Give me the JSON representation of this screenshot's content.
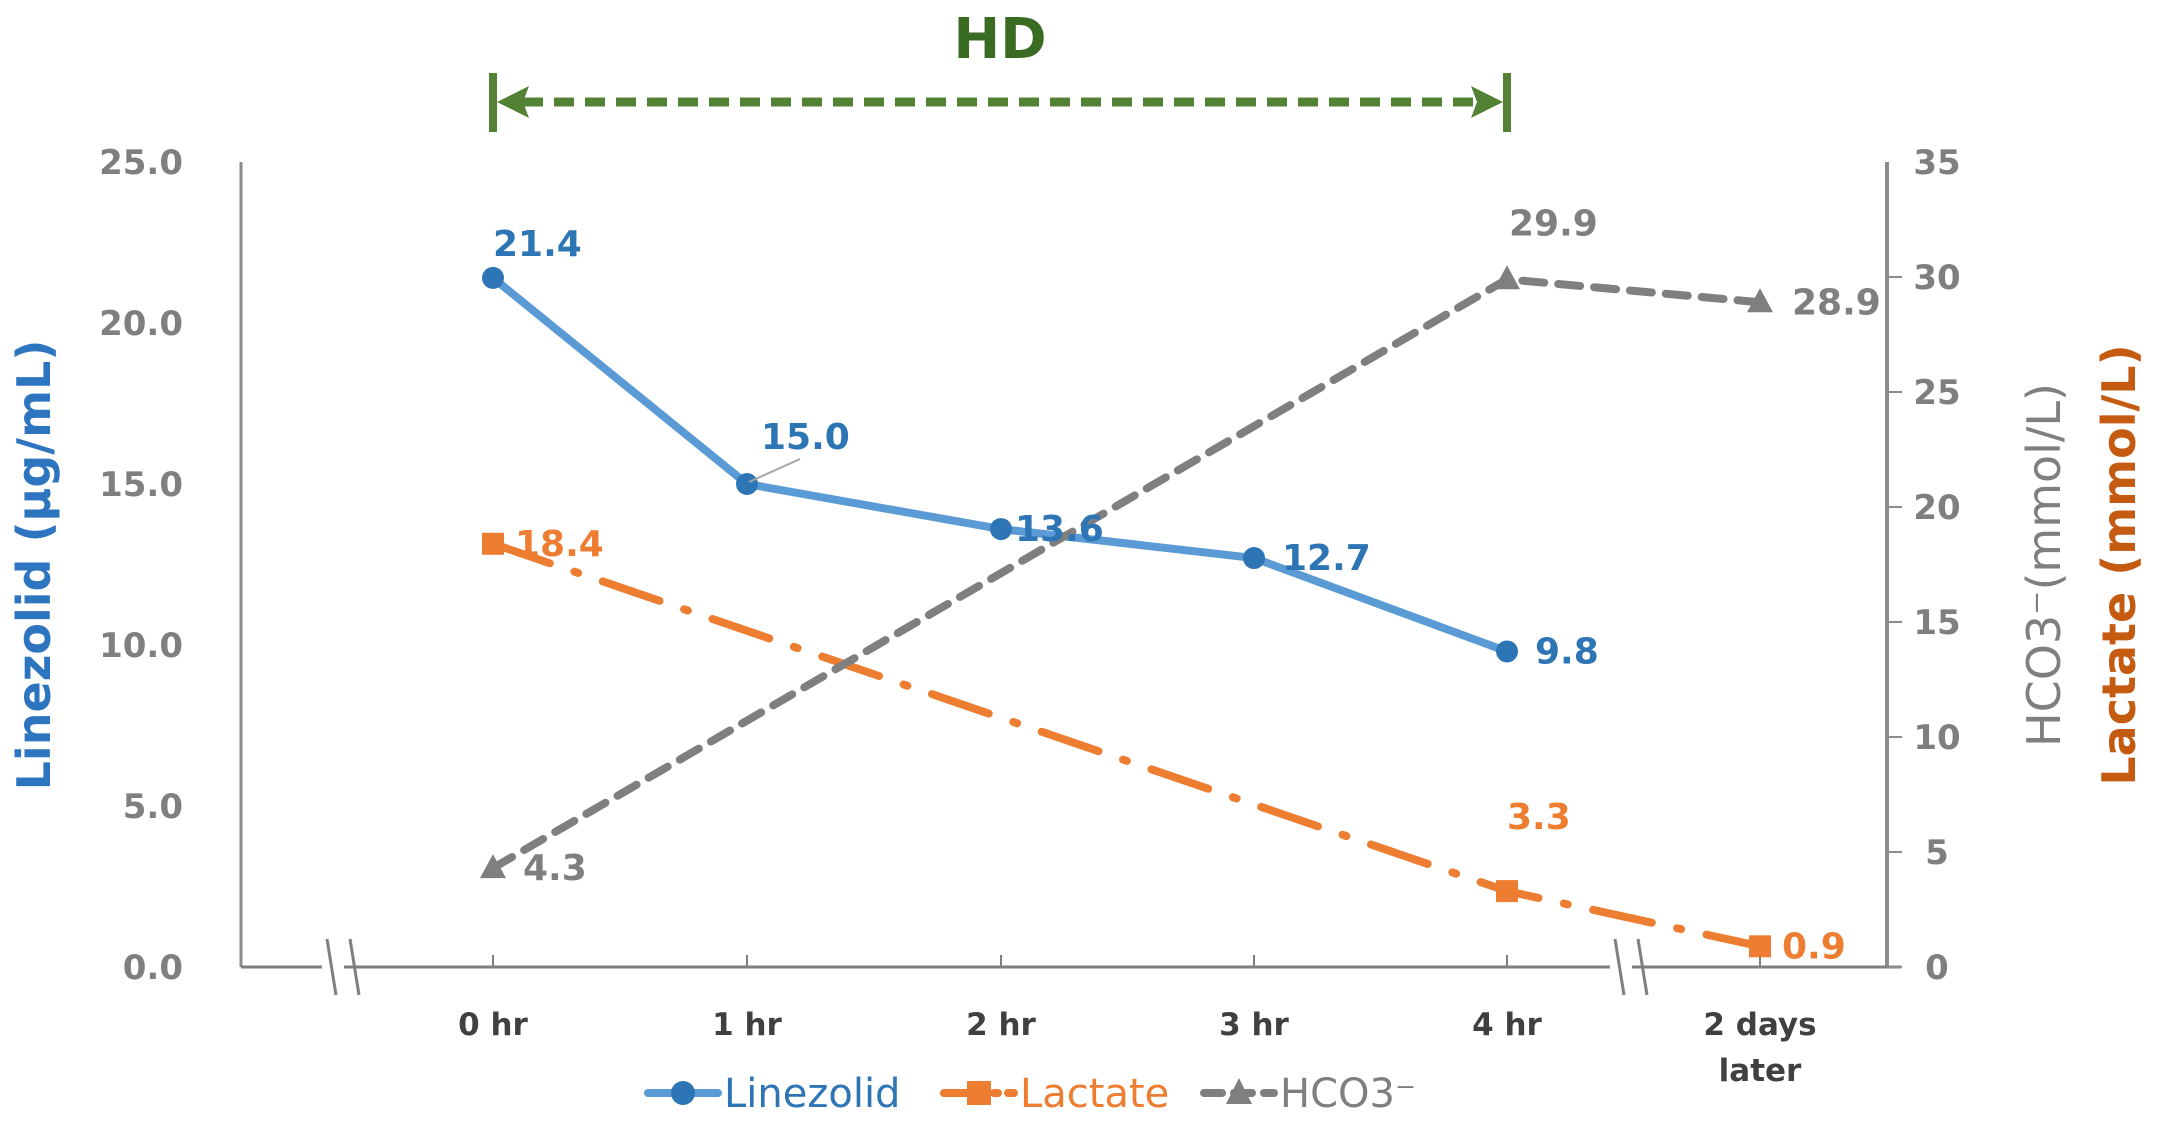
{
  "chart_data": {
    "type": "line",
    "title": "",
    "annotation": {
      "label": "HD",
      "span_from": "0 hr",
      "span_to": "4 hr",
      "color": "#548235"
    },
    "categories": [
      "0 hr",
      "1 hr",
      "2 hr",
      "3 hr",
      "4 hr",
      "2 days later"
    ],
    "category_lines": [
      [
        "0 hr"
      ],
      [
        "1 hr"
      ],
      [
        "2 hr"
      ],
      [
        "3 hr"
      ],
      [
        "4 hr"
      ],
      [
        "2 days",
        "later"
      ]
    ],
    "axis_breaks": [
      "before 0 hr",
      "between 4 hr and 2 days later"
    ],
    "left_axis": {
      "label": "Linezolid (μg/mL)",
      "color": "#2e75c0",
      "range": [
        0,
        25
      ],
      "ticks": [
        0,
        5,
        10,
        15,
        20,
        25
      ],
      "tick_labels": [
        "0.0",
        "5.0",
        "10.0",
        "15.0",
        "20.0",
        "25.0"
      ]
    },
    "right_axis": {
      "label_parts": [
        {
          "text": "HCO3⁻(mmol/L)",
          "color": "#7f7f7f"
        },
        {
          "text": "Lactate (mmol/L)",
          "color": "#c55a11"
        }
      ],
      "range": [
        0,
        35
      ],
      "ticks": [
        0,
        5,
        10,
        15,
        20,
        25,
        30,
        35
      ],
      "tick_labels": [
        "0",
        "5",
        "10",
        "15",
        "20",
        "25",
        "30",
        "35"
      ]
    },
    "series": [
      {
        "name": "Linezolid",
        "axis": "left",
        "color": "#5b9bd5",
        "marker_color": "#2e75b6",
        "label_color": "#2e75b6",
        "marker": "circle",
        "line_style": "solid",
        "values": [
          21.4,
          15.0,
          13.6,
          12.7,
          9.8,
          null
        ],
        "labels": [
          "21.4",
          "15.0",
          "13.6",
          "12.7",
          "9.8",
          null
        ]
      },
      {
        "name": "Lactate",
        "axis": "right",
        "color": "#ed7d31",
        "marker_color": "#ed7d31",
        "label_color": "#ed7d31",
        "marker": "square",
        "line_style": "dash-dot",
        "values": [
          18.4,
          null,
          null,
          null,
          3.3,
          0.9
        ],
        "labels": [
          "18.4",
          null,
          null,
          null,
          "3.3",
          "0.9"
        ]
      },
      {
        "name": "HCO3⁻",
        "axis": "right",
        "color": "#7f7f7f",
        "marker_color": "#7f7f7f",
        "label_color": "#7f7f7f",
        "marker": "triangle",
        "line_style": "dashed",
        "values": [
          4.3,
          null,
          null,
          null,
          29.9,
          28.9
        ],
        "labels": [
          "4.3",
          null,
          null,
          null,
          "29.9",
          "28.9"
        ]
      }
    ],
    "legend": {
      "placement": "bottom",
      "entries": [
        "Linezolid",
        "Lactate",
        "HCO3⁻"
      ]
    },
    "grid": false
  }
}
